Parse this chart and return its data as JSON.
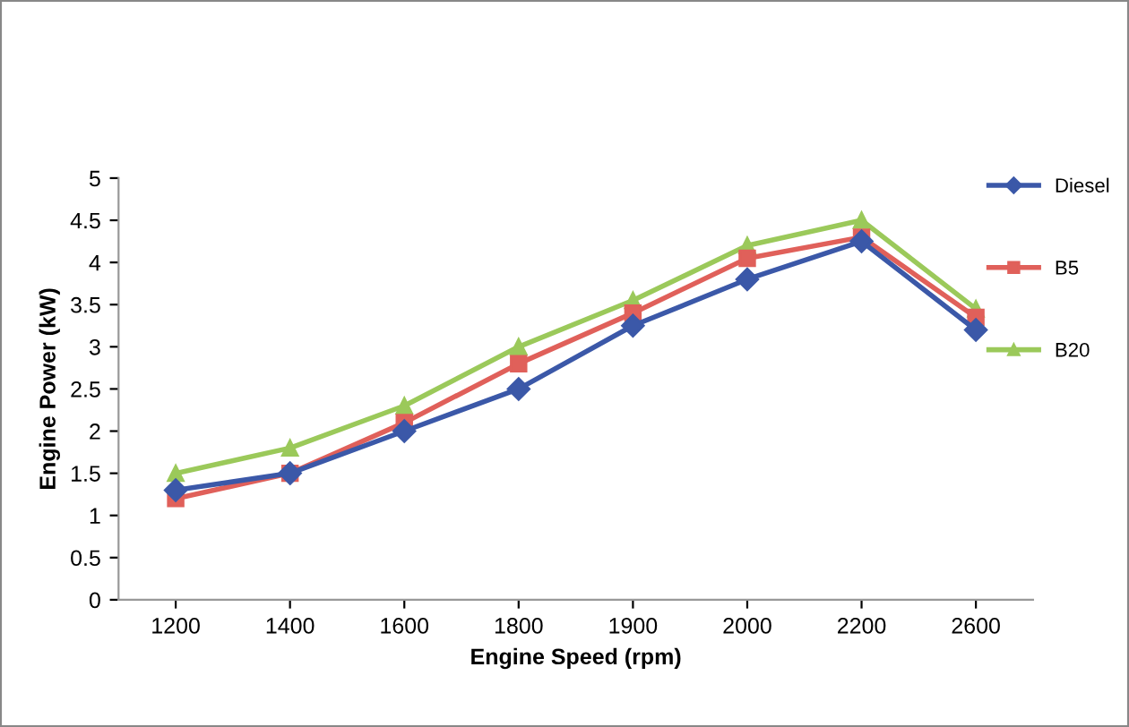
{
  "chart_data": {
    "type": "line",
    "xlabel": "Engine Speed (rpm)",
    "ylabel": "Engine Power (kW)",
    "categories": [
      "1200",
      "1400",
      "1600",
      "1800",
      "1900",
      "2000",
      "2200",
      "2600"
    ],
    "series": [
      {
        "name": "Diesel",
        "color": "#3b58a8",
        "marker": "diamond",
        "values": [
          1.3,
          1.5,
          2.0,
          2.5,
          3.25,
          3.8,
          4.25,
          3.2
        ]
      },
      {
        "name": "B5",
        "color": "#e0605a",
        "marker": "square",
        "values": [
          1.2,
          1.5,
          2.1,
          2.8,
          3.4,
          4.05,
          4.3,
          3.35
        ]
      },
      {
        "name": "B20",
        "color": "#9bc95a",
        "marker": "triangle",
        "values": [
          1.5,
          1.8,
          2.3,
          3.0,
          3.55,
          4.2,
          4.5,
          3.45
        ]
      }
    ],
    "ylim": [
      0,
      5
    ],
    "yticks": [
      0,
      0.5,
      1,
      1.5,
      2,
      2.5,
      3,
      3.5,
      4,
      4.5,
      5
    ],
    "grid": false,
    "legend": "right",
    "line_style": "solid"
  }
}
